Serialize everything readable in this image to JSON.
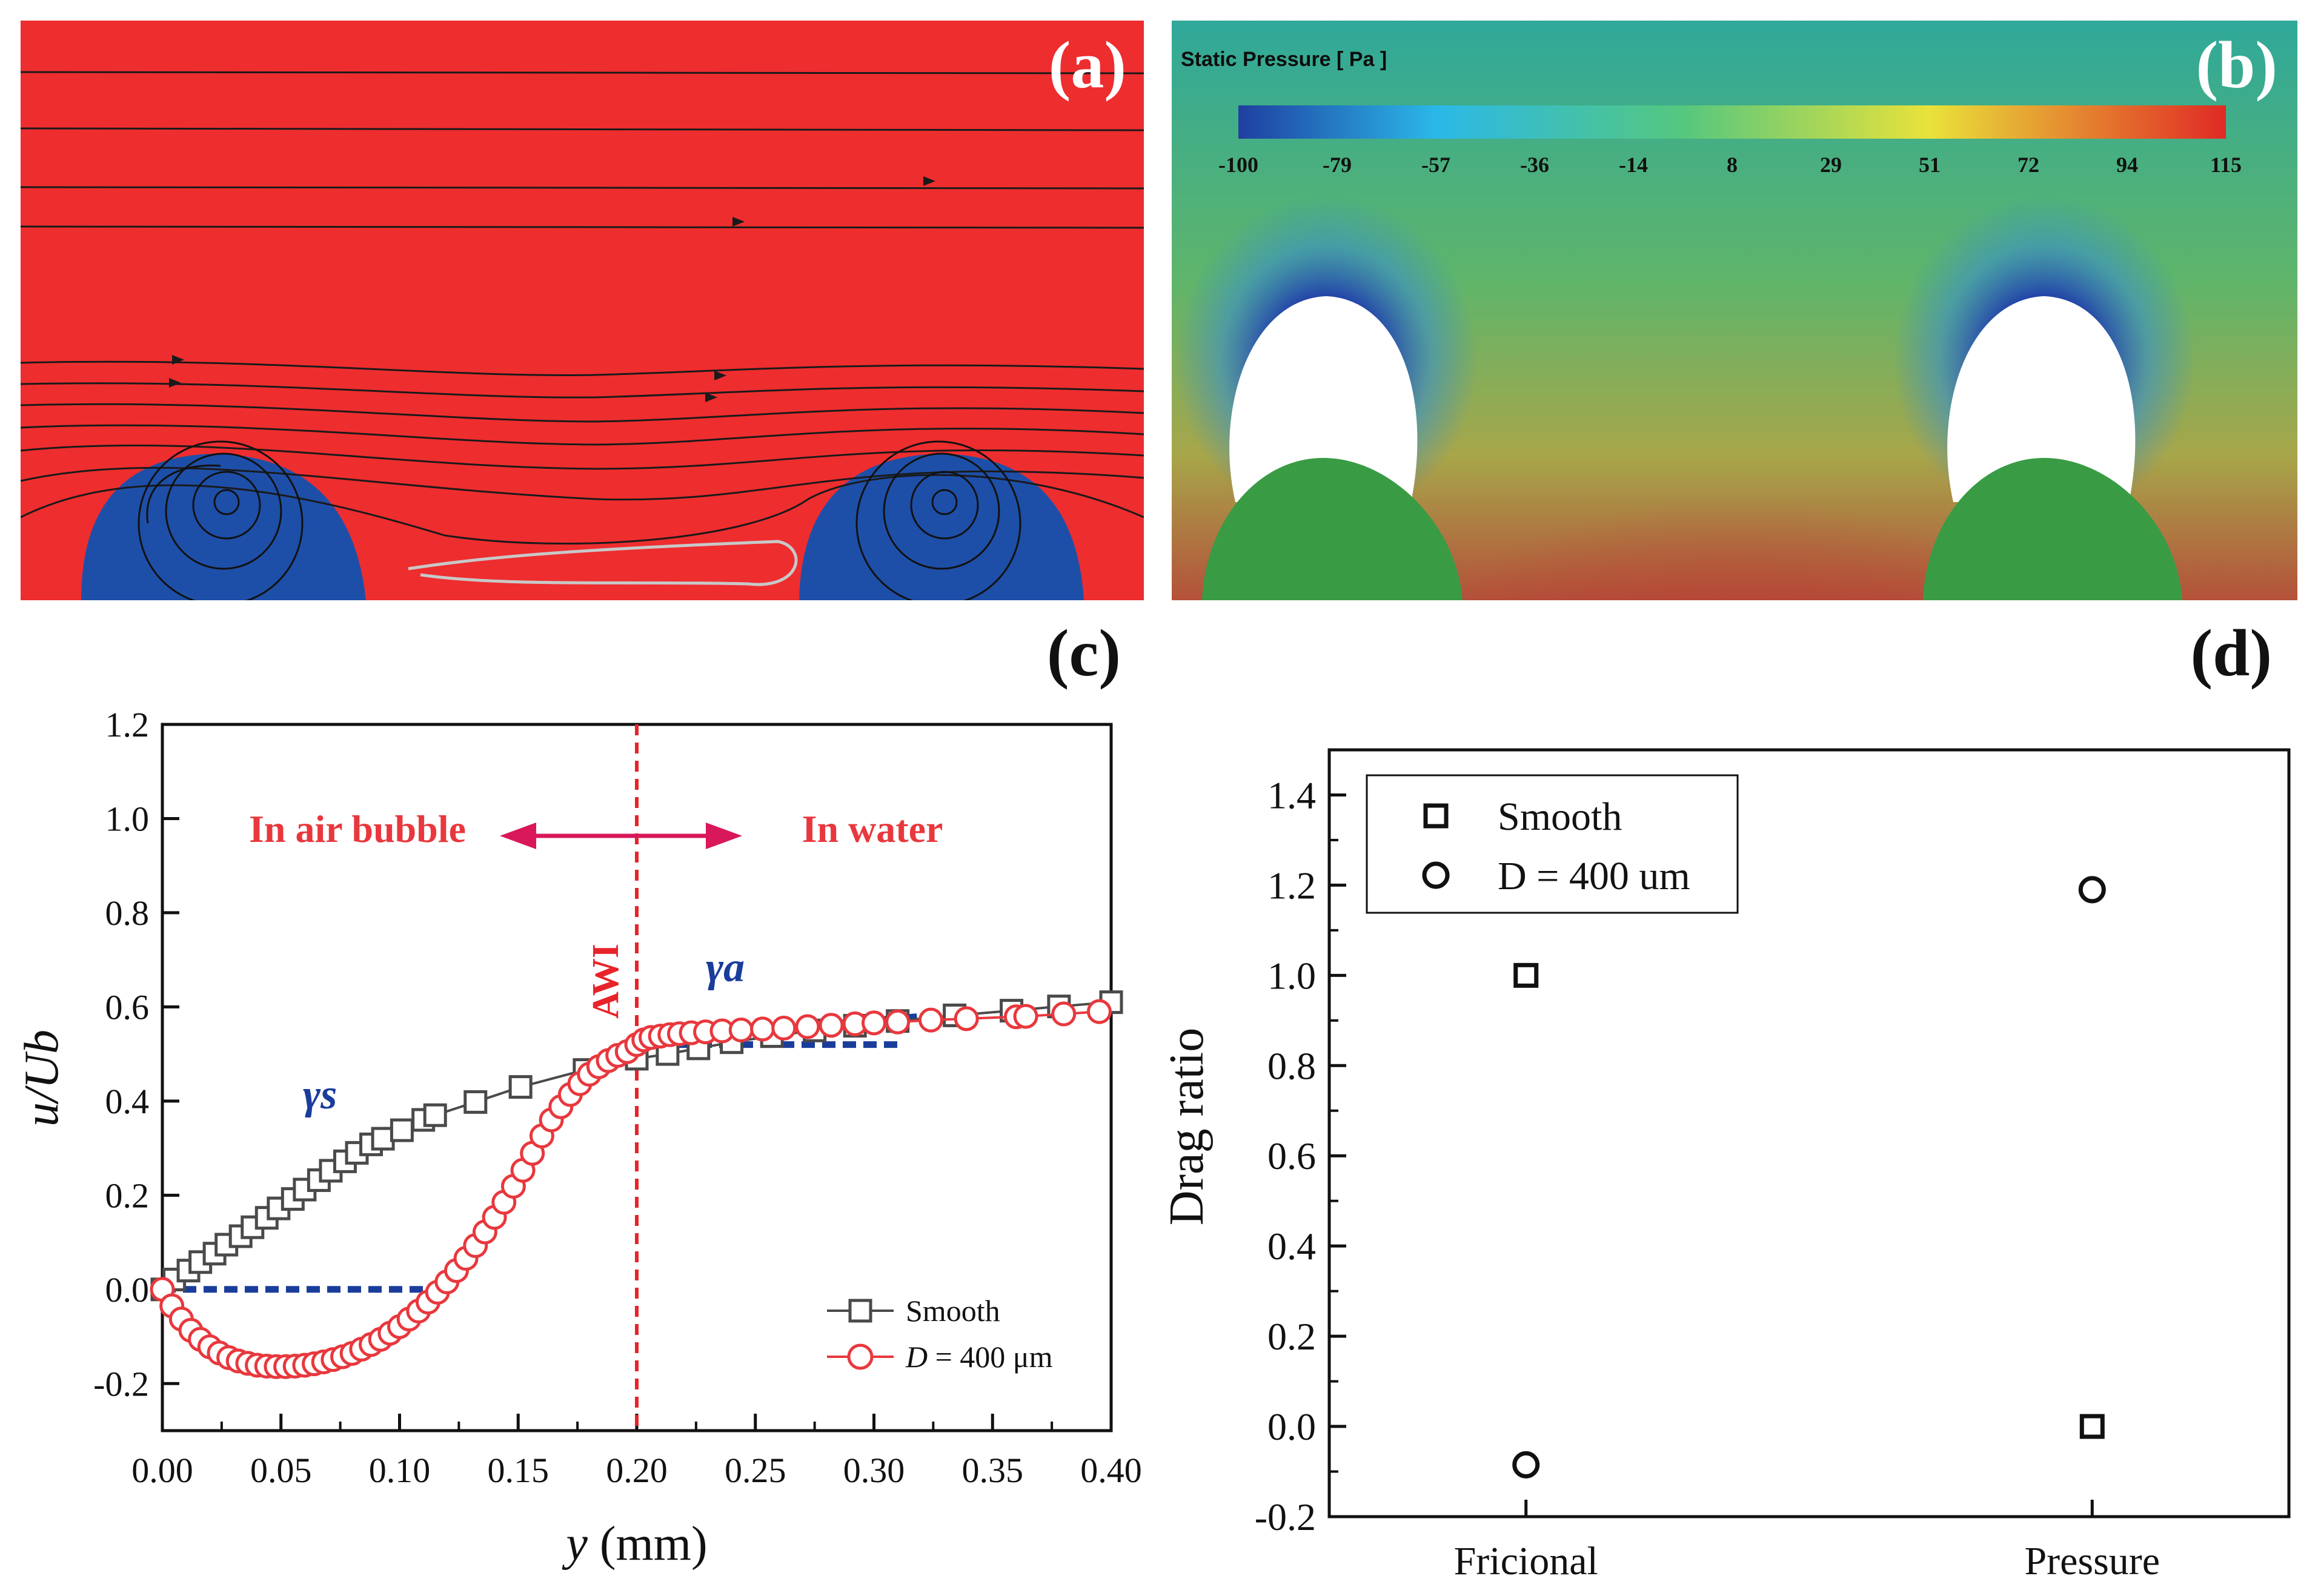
{
  "colors": {
    "air_region": "#ee2d2f",
    "bubble": "#1e4fa8",
    "solid_post": "#3a9b45",
    "smooth_series": "#4a4a4a",
    "d400_series": "#e8383d",
    "tangent_line": "#1a3d9c",
    "awi_line": "#e8232a",
    "arrow": "#d8185a"
  },
  "panel_a": {
    "label": "(a)"
  },
  "panel_b": {
    "label": "(b)",
    "colorbar_title": "Static Pressure [ Pa ]",
    "colorbar_ticks": [
      "-100",
      "-79",
      "-57",
      "-36",
      "-14",
      "8",
      "29",
      "51",
      "72",
      "94",
      "115"
    ]
  },
  "chart_data": [
    {
      "id": "c",
      "panel_label": "(c)",
      "type": "line",
      "xlabel_italic": "y",
      "xlabel_rest": " (mm)",
      "ylabel": "u/Ub",
      "xlim": [
        0.0,
        0.4
      ],
      "ylim": [
        -0.3,
        1.2
      ],
      "xticks": [
        "0.00",
        "0.05",
        "0.10",
        "0.15",
        "0.20",
        "0.25",
        "0.30",
        "0.35",
        "0.40"
      ],
      "yticks": [
        "-0.2",
        "0.0",
        "0.2",
        "0.4",
        "0.6",
        "0.8",
        "1.0",
        "1.2"
      ],
      "annotations": {
        "left_region": "In air bubble",
        "right_region": "In water",
        "interface": "AWI",
        "interface_x": 0.2,
        "gamma_s": "γs",
        "gamma_a": "γa"
      },
      "legend": [
        {
          "label": "Smooth",
          "marker": "square"
        },
        {
          "label_italic": "D",
          "label_rest": " = 400 μm",
          "marker": "circle"
        }
      ],
      "series": [
        {
          "name": "Smooth",
          "marker": "square",
          "x": [
            0.0,
            0.005,
            0.011,
            0.016,
            0.022,
            0.027,
            0.033,
            0.038,
            0.044,
            0.049,
            0.055,
            0.06,
            0.066,
            0.071,
            0.077,
            0.082,
            0.088,
            0.093,
            0.101,
            0.11,
            0.115,
            0.132,
            0.151,
            0.178,
            0.2,
            0.213,
            0.226,
            0.24,
            0.257,
            0.275,
            0.292,
            0.31,
            0.334,
            0.358,
            0.378,
            0.4
          ],
          "values": [
            0.0,
            0.021,
            0.04,
            0.058,
            0.076,
            0.095,
            0.113,
            0.132,
            0.152,
            0.172,
            0.192,
            0.212,
            0.232,
            0.252,
            0.272,
            0.29,
            0.308,
            0.32,
            0.338,
            0.36,
            0.37,
            0.398,
            0.43,
            0.466,
            0.49,
            0.5,
            0.512,
            0.525,
            0.538,
            0.55,
            0.56,
            0.57,
            0.582,
            0.592,
            0.601,
            0.61
          ]
        },
        {
          "name": "D = 400 μm",
          "marker": "circle",
          "x": [
            0.0,
            0.004,
            0.008,
            0.012,
            0.016,
            0.02,
            0.024,
            0.028,
            0.032,
            0.036,
            0.04,
            0.044,
            0.048,
            0.052,
            0.056,
            0.06,
            0.064,
            0.068,
            0.072,
            0.076,
            0.08,
            0.084,
            0.088,
            0.092,
            0.096,
            0.1,
            0.104,
            0.108,
            0.112,
            0.116,
            0.12,
            0.124,
            0.128,
            0.132,
            0.136,
            0.14,
            0.144,
            0.148,
            0.152,
            0.156,
            0.16,
            0.164,
            0.168,
            0.172,
            0.176,
            0.18,
            0.184,
            0.188,
            0.192,
            0.196,
            0.2,
            0.203,
            0.206,
            0.21,
            0.214,
            0.218,
            0.223,
            0.229,
            0.236,
            0.244,
            0.253,
            0.262,
            0.272,
            0.282,
            0.292,
            0.3,
            0.31,
            0.324,
            0.339,
            0.36,
            0.364,
            0.38,
            0.395
          ],
          "values": [
            0.0,
            -0.035,
            -0.063,
            -0.087,
            -0.106,
            -0.122,
            -0.135,
            -0.145,
            -0.152,
            -0.157,
            -0.161,
            -0.163,
            -0.164,
            -0.164,
            -0.163,
            -0.161,
            -0.158,
            -0.154,
            -0.149,
            -0.143,
            -0.136,
            -0.127,
            -0.117,
            -0.106,
            -0.093,
            -0.079,
            -0.063,
            -0.046,
            -0.027,
            -0.006,
            0.016,
            0.04,
            0.066,
            0.093,
            0.122,
            0.153,
            0.185,
            0.219,
            0.253,
            0.289,
            0.326,
            0.36,
            0.388,
            0.414,
            0.437,
            0.457,
            0.473,
            0.486,
            0.497,
            0.505,
            0.52,
            0.53,
            0.535,
            0.538,
            0.541,
            0.543,
            0.545,
            0.547,
            0.549,
            0.551,
            0.553,
            0.555,
            0.558,
            0.561,
            0.564,
            0.566,
            0.568,
            0.572,
            0.575,
            0.579,
            0.58,
            0.585,
            0.59
          ]
        }
      ],
      "tangent_lines": [
        {
          "name": "gamma_s",
          "from": [
            0.0,
            0.0
          ],
          "to": [
            0.115,
            0.0
          ]
        },
        {
          "name": "gamma_s_slope",
          "from": [
            0.0,
            0.0
          ],
          "to": [
            0.095,
            0.34
          ]
        },
        {
          "name": "gamma_a",
          "from": [
            0.2,
            0.52
          ],
          "to": [
            0.31,
            0.52
          ]
        },
        {
          "name": "gamma_a_slope",
          "from": [
            0.2,
            0.53
          ],
          "to": [
            0.32,
            0.58
          ]
        }
      ]
    },
    {
      "id": "d",
      "panel_label": "(d)",
      "type": "scatter",
      "ylabel": "Drag ratio",
      "categories": [
        "Fricional",
        "Pressure"
      ],
      "ylim": [
        -0.2,
        1.5
      ],
      "yticks": [
        "-0.2",
        "0.0",
        "0.2",
        "0.4",
        "0.6",
        "0.8",
        "1.0",
        "1.2",
        "1.4"
      ],
      "legend": [
        {
          "label": "Smooth",
          "marker": "square"
        },
        {
          "label": "D = 400 um",
          "marker": "circle"
        }
      ],
      "series": [
        {
          "name": "Smooth",
          "marker": "square",
          "values": [
            1.0,
            0.0
          ]
        },
        {
          "name": "D = 400 um",
          "marker": "circle",
          "values": [
            -0.085,
            1.19
          ]
        }
      ]
    }
  ]
}
